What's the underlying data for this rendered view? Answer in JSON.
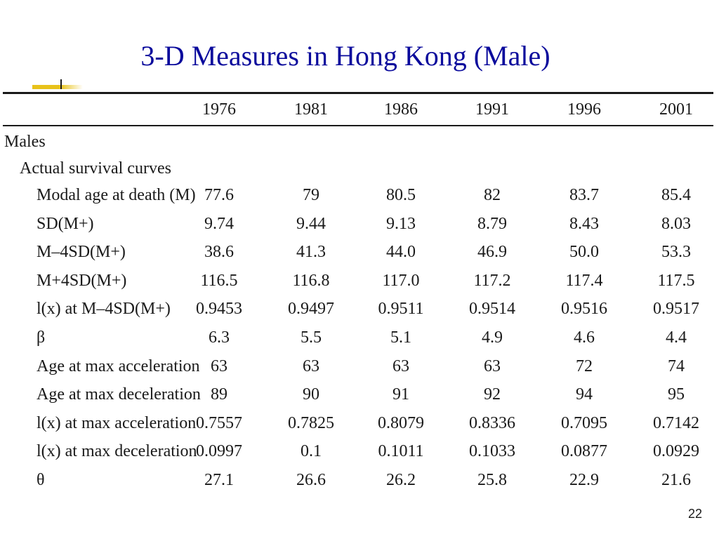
{
  "slide": {
    "title": "3-D Measures in Hong Kong (Male)",
    "page_number": "22",
    "accent_color": "#e8c21a",
    "title_color": "#0a0a9c"
  },
  "table": {
    "columns": [
      "1976",
      "1981",
      "1986",
      "1991",
      "1996",
      "2001"
    ],
    "group_label": "Males",
    "subgroup_label": "Actual survival curves",
    "rows": [
      {
        "label": "Modal age at death (M)",
        "values": [
          "77.6",
          "79",
          "80.5",
          "82",
          "83.7",
          "85.4"
        ]
      },
      {
        "label": "SD(M+)",
        "values": [
          "9.74",
          "9.44",
          "9.13",
          "8.79",
          "8.43",
          "8.03"
        ]
      },
      {
        "label": "M–4SD(M+)",
        "values": [
          "38.6",
          "41.3",
          "44.0",
          "46.9",
          "50.0",
          "53.3"
        ]
      },
      {
        "label": "M+4SD(M+)",
        "values": [
          "116.5",
          "116.8",
          "117.0",
          "117.2",
          "117.4",
          "117.5"
        ]
      },
      {
        "label": "l(x) at M–4SD(M+)",
        "values": [
          "0.9453",
          "0.9497",
          "0.9511",
          "0.9514",
          "0.9516",
          "0.9517"
        ]
      },
      {
        "label": "β",
        "values": [
          "6.3",
          "5.5",
          "5.1",
          "4.9",
          "4.6",
          "4.4"
        ]
      },
      {
        "label": "Age at max acceleration",
        "values": [
          "63",
          "63",
          "63",
          "63",
          "72",
          "74"
        ]
      },
      {
        "label": "Age at max deceleration",
        "values": [
          "89",
          "90",
          "91",
          "92",
          "94",
          "95"
        ]
      },
      {
        "label": "l(x) at max acceleration",
        "values": [
          "0.7557",
          "0.7825",
          "0.8079",
          "0.8336",
          "0.7095",
          "0.7142"
        ]
      },
      {
        "label": "l(x) at max deceleration",
        "values": [
          "0.0997",
          "0.1",
          "0.1011",
          "0.1033",
          "0.0877",
          "0.0929"
        ]
      },
      {
        "label": "θ",
        "values": [
          "27.1",
          "26.6",
          "26.2",
          "25.8",
          "22.9",
          "21.6"
        ]
      }
    ]
  }
}
